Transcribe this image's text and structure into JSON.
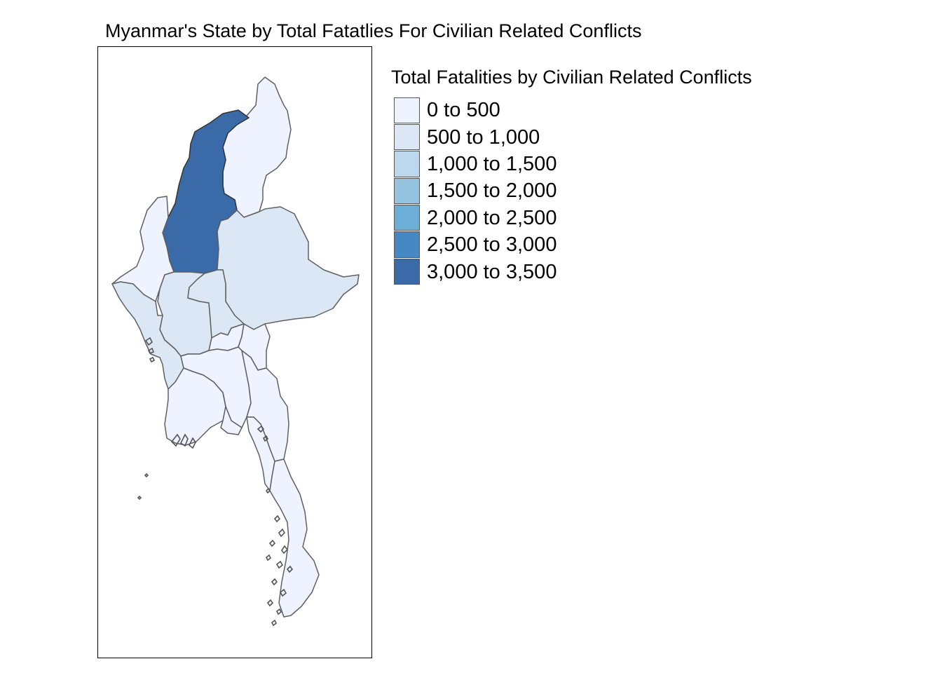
{
  "map": {
    "title": "Myanmar's State by Total Fatatlies For Civilian Related Conflicts"
  },
  "legend": {
    "title": "Total Fatalities by Civilian Related Conflicts",
    "items": [
      {
        "label": "0 to 500",
        "color": "#eff3ff"
      },
      {
        "label": "500 to 1,000",
        "color": "#dbe7f5"
      },
      {
        "label": "1,000 to 1,500",
        "color": "#bdd7ee"
      },
      {
        "label": "1,500 to 2,000",
        "color": "#94c4df"
      },
      {
        "label": "2,000 to 2,500",
        "color": "#6baed6"
      },
      {
        "label": "2,500 to 3,000",
        "color": "#4588c3"
      },
      {
        "label": "3,000 to 3,500",
        "color": "#3a6aa8"
      }
    ]
  },
  "regions": {
    "kachin": {
      "class_color": "#eff3ff"
    },
    "sagaing": {
      "class_color": "#3a6aa8"
    },
    "chin": {
      "class_color": "#eff3ff"
    },
    "shan": {
      "class_color": "#dbe7f5"
    },
    "magway": {
      "class_color": "#dbe7f5"
    },
    "mandalay": {
      "class_color": "#dbe7f5"
    },
    "rakhine": {
      "class_color": "#dbe7f5"
    },
    "bago": {
      "class_color": "#eff3ff"
    },
    "naypyitaw": {
      "class_color": "#eff3ff"
    },
    "kayah": {
      "class_color": "#eff3ff"
    },
    "kayin": {
      "class_color": "#eff3ff"
    },
    "ayeyarwady": {
      "class_color": "#eff3ff"
    },
    "yangon": {
      "class_color": "#eff3ff"
    },
    "mon": {
      "class_color": "#eff3ff"
    },
    "tanintharyi": {
      "class_color": "#eff3ff"
    }
  }
}
